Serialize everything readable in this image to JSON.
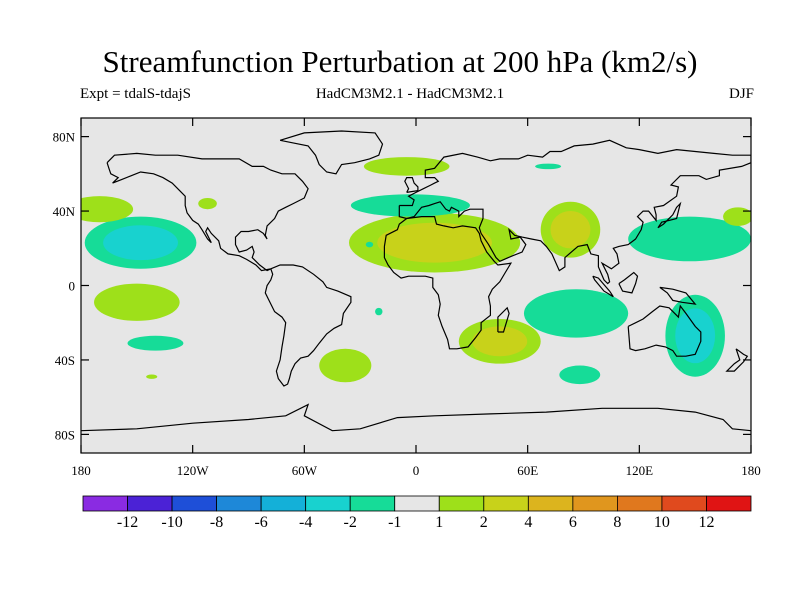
{
  "title": "Streamfunction Perturbation at 200 hPa (km2/s)",
  "subtitle_left": "Expt = tdalS-tdajS",
  "subtitle_center": "HadCM3M2.1 - HadCM3M2.1",
  "subtitle_right": "DJF",
  "lat_ticks": [
    "80N",
    "40N",
    "0",
    "40S",
    "80S"
  ],
  "lon_ticks": [
    "180",
    "120W",
    "60W",
    "0",
    "60E",
    "120E",
    "180"
  ],
  "colorbar": {
    "labels": [
      "-12",
      "-10",
      "-8",
      "-6",
      "-4",
      "-2",
      "-1",
      "1",
      "2",
      "4",
      "6",
      "8",
      "10",
      "12"
    ],
    "colors": [
      "#8a2be2",
      "#4b22d6",
      "#1e4fd8",
      "#1e88d8",
      "#14b0d8",
      "#18d2cf",
      "#16dc98",
      "#e6e6e6",
      "#9ee01a",
      "#c8d21a",
      "#dcb41e",
      "#e0961e",
      "#e0781e",
      "#e04a1e",
      "#e01414"
    ]
  },
  "map": {
    "background": "#e6e6e6",
    "lat_range": [
      -90,
      90
    ],
    "lon_range": [
      -180,
      180
    ]
  },
  "chart_data": {
    "type": "heatmap",
    "title": "Streamfunction Perturbation at 200 hPa (km2/s)",
    "season": "DJF",
    "levels": [
      -12,
      -10,
      -8,
      -6,
      -4,
      -2,
      -1,
      1,
      2,
      4,
      6,
      8,
      10,
      12
    ],
    "anomalies": [
      {
        "name": "pacific-neg-tropics-north",
        "lon": -148,
        "lat": 23,
        "rlon": 30,
        "rlat": 14,
        "level": -3
      },
      {
        "name": "pacific-pos-midlat-north",
        "lon": -170,
        "lat": 41,
        "rlon": 18,
        "rlat": 7,
        "level": 1.5
      },
      {
        "name": "pacific-pos-south",
        "lon": -150,
        "lat": -9,
        "rlon": 23,
        "rlat": 10,
        "level": 2.5
      },
      {
        "name": "pacific-neg-south",
        "lon": -140,
        "lat": -31,
        "rlon": 15,
        "rlat": 4,
        "level": -1.5
      },
      {
        "name": "pacific-pos-small-south",
        "lon": -142,
        "lat": -49,
        "rlon": 3,
        "rlat": 1.2,
        "level": 1.5
      },
      {
        "name": "atlantic-pos-north-africa",
        "lon": 10,
        "lat": 23,
        "rlon": 46,
        "rlat": 16,
        "level": 3
      },
      {
        "name": "atlantic-neg-north",
        "lon": -3,
        "lat": 43,
        "rlon": 32,
        "rlat": 6,
        "level": -1.5
      },
      {
        "name": "arctic-pos-greenland-sea",
        "lon": -5,
        "lat": 64,
        "rlon": 23,
        "rlat": 5,
        "level": 1.5
      },
      {
        "name": "south-atlantic-pos",
        "lon": -38,
        "lat": -43,
        "rlon": 14,
        "rlat": 9,
        "level": 1.5
      },
      {
        "name": "south-atlantic-neg-small",
        "lon": -20,
        "lat": -14,
        "rlon": 2,
        "rlat": 2,
        "level": -1.5
      },
      {
        "name": "southern-africa-pos",
        "lon": 45,
        "lat": -30,
        "rlon": 22,
        "rlat": 12,
        "level": 3
      },
      {
        "name": "asia-pos",
        "lon": 83,
        "lat": 30,
        "rlon": 16,
        "rlat": 15,
        "level": 4
      },
      {
        "name": "east-asia-neg",
        "lon": 147,
        "lat": 25,
        "rlon": 33,
        "rlat": 12,
        "level": -2
      },
      {
        "name": "west-pacific-pos-north",
        "lon": 173,
        "lat": 37,
        "rlon": 8,
        "rlat": 5,
        "level": 1.5
      },
      {
        "name": "indian-ocean-neg",
        "lon": 86,
        "lat": -15,
        "rlon": 28,
        "rlat": 13,
        "level": -1.5
      },
      {
        "name": "indian-ocean-neg-south",
        "lon": 88,
        "lat": -48,
        "rlon": 11,
        "rlat": 5,
        "level": -1.5
      },
      {
        "name": "australia-neg",
        "lon": 150,
        "lat": -27,
        "rlon": 16,
        "rlat": 22,
        "level": -4
      },
      {
        "name": "west-africa-neg-small",
        "lon": -25,
        "lat": 22,
        "rlon": 2,
        "rlat": 1.5,
        "level": -1.5
      },
      {
        "name": "north-atlantic-neg-small",
        "lon": -112,
        "lat": 44,
        "rlon": 5,
        "rlat": 3,
        "level": 1.5
      },
      {
        "name": "east-asia-neg-small",
        "lon": 71,
        "lat": 64,
        "rlon": 7,
        "rlat": 1.5,
        "level": -1.5
      }
    ]
  }
}
